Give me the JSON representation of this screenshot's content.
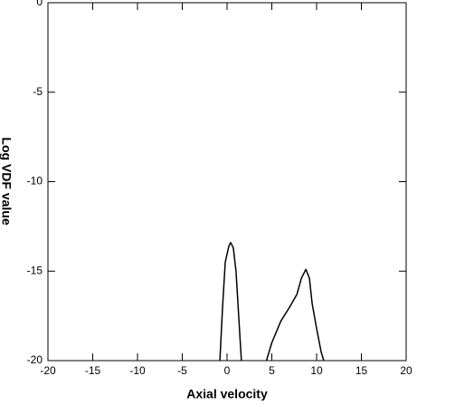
{
  "chart_data": {
    "type": "line",
    "xlabel": "Axial velocity",
    "ylabel": "Log VDF value",
    "xlim": [
      -20,
      20
    ],
    "xticks": [
      -20,
      -15,
      -10,
      -5,
      0,
      5,
      10,
      15,
      20
    ],
    "ylim": [
      -20,
      0
    ],
    "yticks": [
      -20,
      -15,
      -10,
      -5,
      0
    ],
    "series": [
      {
        "color": "#000000",
        "x": [
          -0.8,
          -0.5,
          -0.2,
          0.2,
          0.4,
          0.7,
          1.0,
          1.3,
          1.6
        ],
        "values": [
          -20,
          -17,
          -14.5,
          -13.6,
          -13.4,
          -13.7,
          -15,
          -17.5,
          -20
        ]
      },
      {
        "color": "#000000",
        "x": [
          4.4,
          5,
          6,
          7,
          7.8,
          8.3,
          8.8,
          9.2,
          9.5,
          10,
          10.5,
          10.8
        ],
        "values": [
          -20,
          -19,
          -17.8,
          -17,
          -16.3,
          -15.4,
          -14.9,
          -15.4,
          -16.8,
          -18.2,
          -19.5,
          -20
        ]
      }
    ]
  }
}
